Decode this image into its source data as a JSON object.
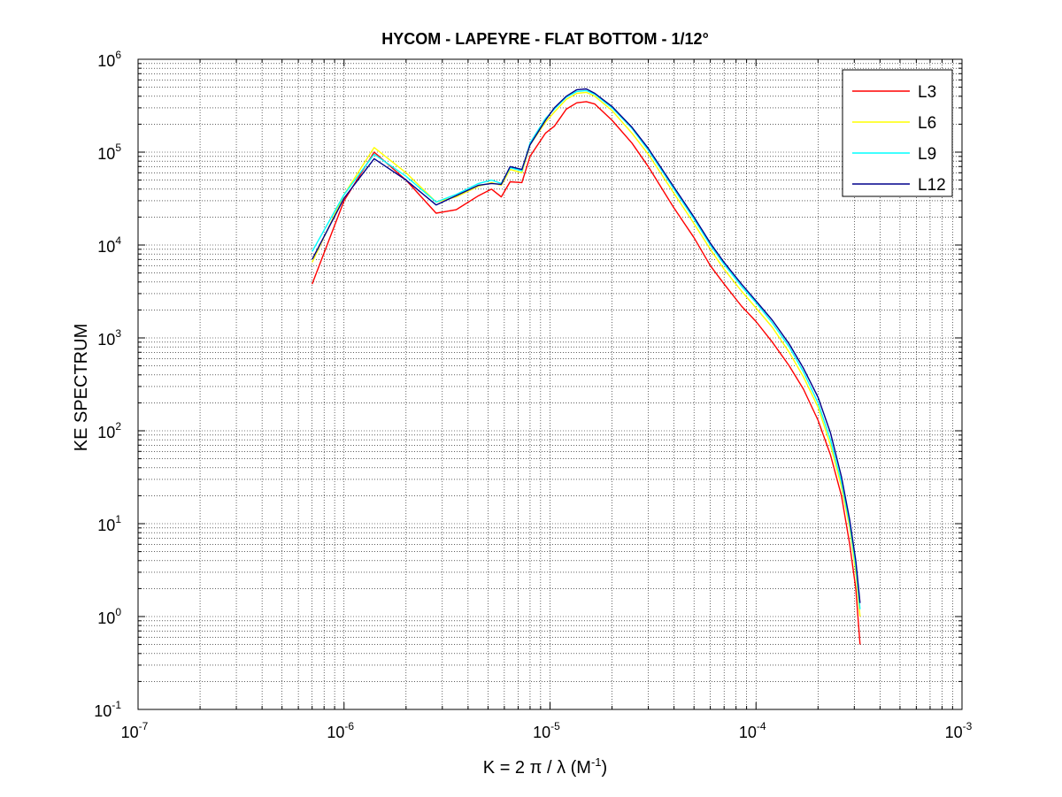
{
  "chart_data": {
    "type": "line",
    "title": "HYCOM - LAPEYRE - FLAT BOTTOM - 1/12°",
    "xlabel": {
      "main": "K = 2 π / λ  (M",
      "sup": "-1",
      "close": ")"
    },
    "ylabel": "KE SPECTRUM",
    "x_scale": "log",
    "y_scale": "log",
    "xlim": [
      1e-07,
      0.001
    ],
    "ylim": [
      0.1,
      1000000
    ],
    "x_ticks": [
      {
        "base": "10",
        "exp": "-7"
      },
      {
        "base": "10",
        "exp": "-6"
      },
      {
        "base": "10",
        "exp": "-5"
      },
      {
        "base": "10",
        "exp": "-4"
      },
      {
        "base": "10",
        "exp": "-3"
      }
    ],
    "y_ticks": [
      {
        "base": "10",
        "exp": "-1"
      },
      {
        "base": "10",
        "exp": "0"
      },
      {
        "base": "10",
        "exp": "1"
      },
      {
        "base": "10",
        "exp": "2"
      },
      {
        "base": "10",
        "exp": "3"
      },
      {
        "base": "10",
        "exp": "4"
      },
      {
        "base": "10",
        "exp": "5"
      },
      {
        "base": "10",
        "exp": "6"
      }
    ],
    "grid": true,
    "legend_position": "top-right",
    "series": [
      {
        "name": "L3",
        "color": "#ff0000",
        "points": [
          [
            7e-07,
            3800
          ],
          [
            1e-06,
            30000
          ],
          [
            1.4e-06,
            100000
          ],
          [
            2e-06,
            50000
          ],
          [
            2.8e-06,
            22000
          ],
          [
            3.5e-06,
            24000
          ],
          [
            4.5e-06,
            34000
          ],
          [
            5.2e-06,
            40000
          ],
          [
            5.8e-06,
            33000
          ],
          [
            6.4e-06,
            48000
          ],
          [
            7.3e-06,
            47000
          ],
          [
            8e-06,
            90000
          ],
          [
            9.5e-06,
            160000
          ],
          [
            1.05e-05,
            190000
          ],
          [
            1.2e-05,
            290000
          ],
          [
            1.35e-05,
            340000
          ],
          [
            1.5e-05,
            350000
          ],
          [
            1.65e-05,
            330000
          ],
          [
            2e-05,
            220000
          ],
          [
            2.5e-05,
            125000
          ],
          [
            3e-05,
            70000
          ],
          [
            4e-05,
            25000
          ],
          [
            5e-05,
            12000
          ],
          [
            6e-05,
            6000
          ],
          [
            7e-05,
            3800
          ],
          [
            8.5e-05,
            2200
          ],
          [
            0.0001,
            1500
          ],
          [
            0.00012,
            900
          ],
          [
            0.000145,
            500
          ],
          [
            0.00017,
            280
          ],
          [
            0.0002,
            130
          ],
          [
            0.00023,
            55
          ],
          [
            0.00026,
            20
          ],
          [
            0.000285,
            6
          ],
          [
            0.000305,
            2
          ],
          [
            0.00032,
            0.5
          ]
        ]
      },
      {
        "name": "L6",
        "color": "#ffff00",
        "points": [
          [
            7e-07,
            6500
          ],
          [
            1e-06,
            35000
          ],
          [
            1.4e-06,
            112000
          ],
          [
            2e-06,
            60000
          ],
          [
            2.8e-06,
            29000
          ],
          [
            3.5e-06,
            33000
          ],
          [
            4.5e-06,
            43000
          ],
          [
            5.2e-06,
            47000
          ],
          [
            5.8e-06,
            44000
          ],
          [
            6.4e-06,
            65000
          ],
          [
            7.3e-06,
            60000
          ],
          [
            8e-06,
            120000
          ],
          [
            9.5e-06,
            210000
          ],
          [
            1.05e-05,
            270000
          ],
          [
            1.2e-05,
            370000
          ],
          [
            1.35e-05,
            430000
          ],
          [
            1.5e-05,
            440000
          ],
          [
            1.65e-05,
            400000
          ],
          [
            2e-05,
            280000
          ],
          [
            2.5e-05,
            160000
          ],
          [
            3e-05,
            95000
          ],
          [
            4e-05,
            36000
          ],
          [
            5e-05,
            17000
          ],
          [
            6e-05,
            9000
          ],
          [
            7e-05,
            5500
          ],
          [
            8.5e-05,
            3200
          ],
          [
            0.0001,
            2100
          ],
          [
            0.00012,
            1300
          ],
          [
            0.000145,
            700
          ],
          [
            0.00017,
            380
          ],
          [
            0.0002,
            180
          ],
          [
            0.00023,
            70
          ],
          [
            0.00026,
            25
          ],
          [
            0.000285,
            9
          ],
          [
            0.000305,
            3
          ],
          [
            0.00032,
            1
          ]
        ]
      },
      {
        "name": "L9",
        "color": "#00ffff",
        "points": [
          [
            7e-07,
            8500
          ],
          [
            1e-06,
            35000
          ],
          [
            1.4e-06,
            95000
          ],
          [
            2e-06,
            55000
          ],
          [
            2.8e-06,
            29000
          ],
          [
            3.5e-06,
            35000
          ],
          [
            4.5e-06,
            46000
          ],
          [
            5.2e-06,
            50000
          ],
          [
            5.8e-06,
            46000
          ],
          [
            6.4e-06,
            68000
          ],
          [
            7.3e-06,
            63000
          ],
          [
            8e-06,
            125000
          ],
          [
            9.5e-06,
            230000
          ],
          [
            1.05e-05,
            290000
          ],
          [
            1.2e-05,
            390000
          ],
          [
            1.35e-05,
            450000
          ],
          [
            1.5e-05,
            460000
          ],
          [
            1.65e-05,
            420000
          ],
          [
            2e-05,
            300000
          ],
          [
            2.5e-05,
            180000
          ],
          [
            3e-05,
            105000
          ],
          [
            4e-05,
            40000
          ],
          [
            5e-05,
            19000
          ],
          [
            6e-05,
            10000
          ],
          [
            7e-05,
            6200
          ],
          [
            8.5e-05,
            3600
          ],
          [
            0.0001,
            2400
          ],
          [
            0.00012,
            1450
          ],
          [
            0.000145,
            800
          ],
          [
            0.00017,
            430
          ],
          [
            0.0002,
            200
          ],
          [
            0.00023,
            80
          ],
          [
            0.00026,
            28
          ],
          [
            0.000285,
            10
          ],
          [
            0.000305,
            3.5
          ],
          [
            0.00032,
            1.2
          ]
        ]
      },
      {
        "name": "L12",
        "color": "#00008b",
        "points": [
          [
            7e-07,
            7000
          ],
          [
            1e-06,
            32000
          ],
          [
            1.4e-06,
            85000
          ],
          [
            2e-06,
            50000
          ],
          [
            2.8e-06,
            27000
          ],
          [
            3.5e-06,
            34000
          ],
          [
            4.5e-06,
            44000
          ],
          [
            5.2e-06,
            46000
          ],
          [
            5.8e-06,
            45000
          ],
          [
            6.4e-06,
            70000
          ],
          [
            7.3e-06,
            65000
          ],
          [
            8e-06,
            120000
          ],
          [
            9.5e-06,
            220000
          ],
          [
            1.05e-05,
            300000
          ],
          [
            1.2e-05,
            400000
          ],
          [
            1.35e-05,
            470000
          ],
          [
            1.5e-05,
            480000
          ],
          [
            1.65e-05,
            430000
          ],
          [
            2e-05,
            310000
          ],
          [
            2.5e-05,
            185000
          ],
          [
            3e-05,
            110000
          ],
          [
            4e-05,
            42000
          ],
          [
            5e-05,
            20000
          ],
          [
            6e-05,
            10500
          ],
          [
            7e-05,
            6500
          ],
          [
            8.5e-05,
            3800
          ],
          [
            0.0001,
            2500
          ],
          [
            0.00012,
            1550
          ],
          [
            0.000145,
            860
          ],
          [
            0.00017,
            470
          ],
          [
            0.0002,
            230
          ],
          [
            0.00023,
            95
          ],
          [
            0.00026,
            32
          ],
          [
            0.000285,
            11
          ],
          [
            0.000305,
            4
          ],
          [
            0.00032,
            1.4
          ]
        ]
      }
    ]
  }
}
